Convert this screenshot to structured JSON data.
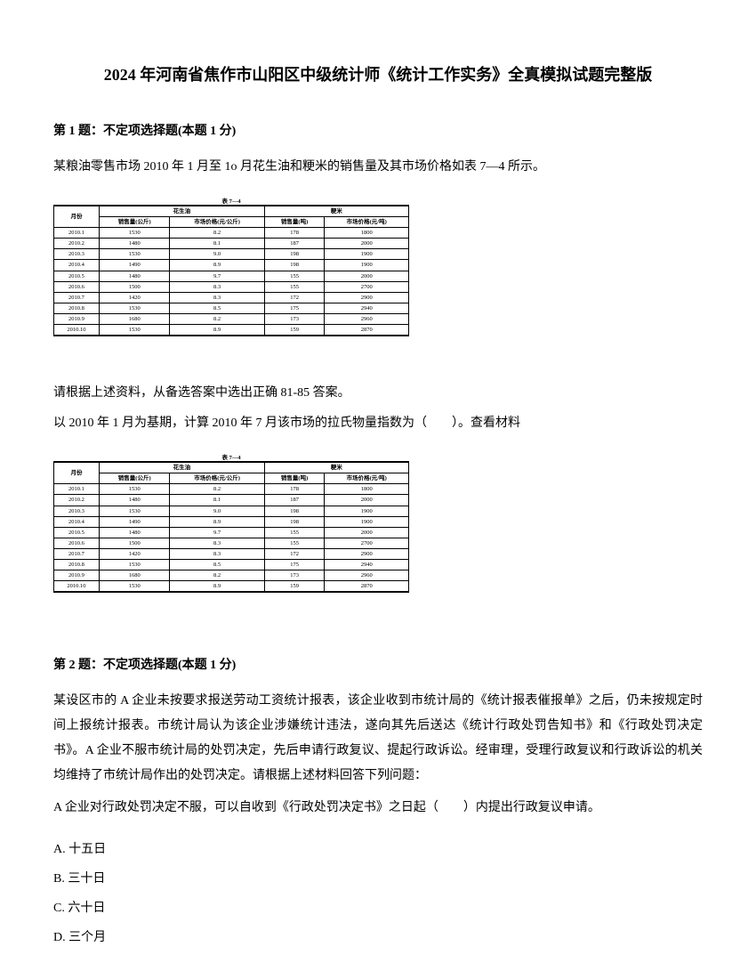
{
  "title": "2024 年河南省焦作市山阳区中级统计师《统计工作实务》全真模拟试题完整版",
  "q1": {
    "header": "第 1 题：不定项选择题(本题 1 分)",
    "intro": "某粮油零售市场 2010 年 1 月至 1o 月花生油和粳米的销售量及其市场价格如表 7—4 所示。",
    "mid_text1": "请根据上述资料，从备选答案中选出正确 81-85 答案。",
    "mid_text2": "以 2010 年 1 月为基期，计算 2010 年 7 月该市场的拉氏物量指数为（　　）。查看材料",
    "table": {
      "caption": "表 7—4",
      "group1": "花生油",
      "group2": "粳米",
      "col_month": "月份",
      "col_h1": "销售量(公斤)",
      "col_h2": "市场价格(元/公斤)",
      "col_h3": "销售量(吨)",
      "col_h4": "市场价格(元/吨)",
      "rows": [
        {
          "m": "2010.1",
          "a": "1530",
          "b": "8.2",
          "c": "178",
          "d": "1800"
        },
        {
          "m": "2010.2",
          "a": "1480",
          "b": "8.1",
          "c": "187",
          "d": "2000"
        },
        {
          "m": "2010.3",
          "a": "1530",
          "b": "9.0",
          "c": "198",
          "d": "1900"
        },
        {
          "m": "2010.4",
          "a": "1490",
          "b": "8.9",
          "c": "198",
          "d": "1900"
        },
        {
          "m": "2010.5",
          "a": "1480",
          "b": "9.7",
          "c": "155",
          "d": "2000"
        },
        {
          "m": "2010.6",
          "a": "1500",
          "b": "8.3",
          "c": "155",
          "d": "2700"
        },
        {
          "m": "2010.7",
          "a": "1420",
          "b": "8.3",
          "c": "172",
          "d": "2900"
        },
        {
          "m": "2010.8",
          "a": "1530",
          "b": "8.5",
          "c": "175",
          "d": "2940"
        },
        {
          "m": "2010.9",
          "a": "1680",
          "b": "8.2",
          "c": "173",
          "d": "2960"
        },
        {
          "m": "2010.10",
          "a": "1530",
          "b": "8.9",
          "c": "159",
          "d": "2870"
        }
      ]
    }
  },
  "q2": {
    "header": "第 2 题：不定项选择题(本题 1 分)",
    "body": "某设区市的 A 企业未按要求报送劳动工资统计报表，该企业收到市统计局的《统计报表催报单》之后，仍未按规定时间上报统计报表。市统计局认为该企业涉嫌统计违法，遂向其先后送达《统计行政处罚告知书》和《行政处罚决定书》。A 企业不服市统计局的处罚决定，先后申请行政复议、提起行政诉讼。经审理，受理行政复议和行政诉讼的机关均维持了市统计局作出的处罚决定。请根据上述材料回答下列问题：",
    "question": "A 企业对行政处罚决定不服，可以自收到《行政处罚决定书》之日起（　　）内提出行政复议申请。",
    "options": {
      "a": "A. 十五日",
      "b": "B. 三十日",
      "c": "C. 六十日",
      "d": "D. 三个月"
    }
  }
}
